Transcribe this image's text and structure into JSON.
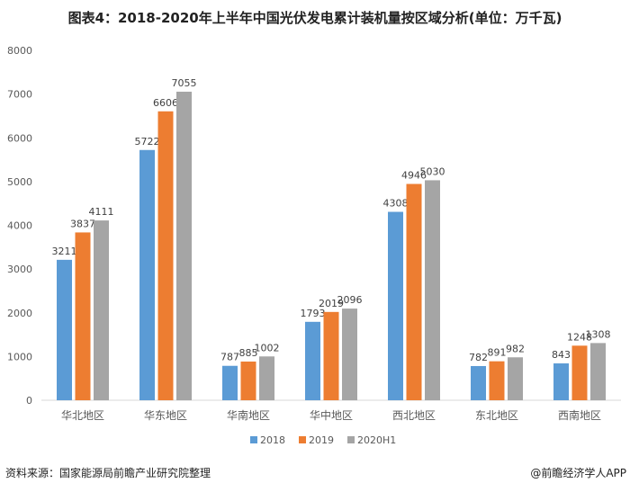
{
  "title": "图表4：2018-2020年上半年中国光伏发电累计装机量按区域分析(单位：万千瓦)",
  "source": "资料来源：国家能源局前瞻产业研究院整理",
  "credit": "@前瞻经济学人APP",
  "chart_data": {
    "type": "bar",
    "title": "图表4：2018-2020年上半年中国光伏发电累计装机量按区域分析(单位：万千瓦)",
    "categories": [
      "华北地区",
      "华东地区",
      "华南地区",
      "华中地区",
      "西北地区",
      "东北地区",
      "西南地区"
    ],
    "series": [
      {
        "name": "2018",
        "color": "#5b9bd5",
        "values": [
          3211,
          5722,
          787,
          1793,
          4308,
          782,
          843
        ]
      },
      {
        "name": "2019",
        "color": "#ed7d31",
        "values": [
          3837,
          6606,
          885,
          2019,
          4946,
          891,
          1248
        ]
      },
      {
        "name": "2020H1",
        "color": "#a5a5a5",
        "values": [
          4111,
          7055,
          1002,
          2096,
          5030,
          982,
          1308
        ]
      }
    ],
    "ylim": [
      0,
      8000
    ],
    "yticks": [
      0,
      1000,
      2000,
      3000,
      4000,
      5000,
      6000,
      7000,
      8000
    ],
    "grid": false,
    "legend": "bottom"
  }
}
